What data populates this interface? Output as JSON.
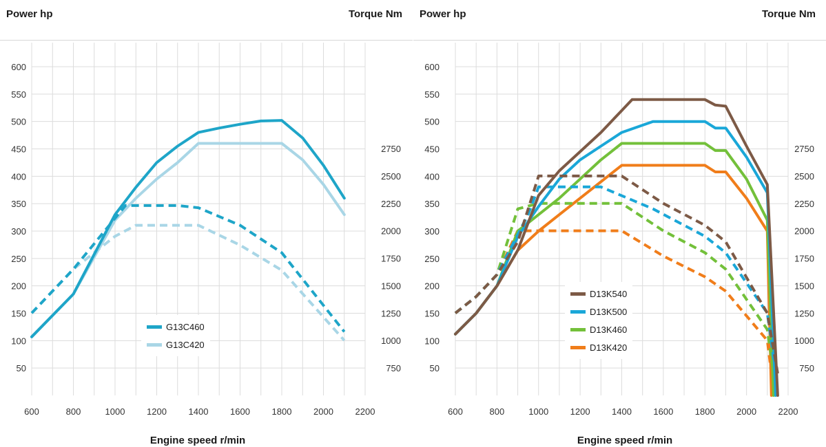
{
  "chart_data": [
    {
      "type": "line",
      "left_axis_title": "Power hp",
      "right_axis_title": "Torque Nm",
      "xlabel": "Engine speed r/min",
      "x_ticks": [
        600,
        800,
        1000,
        1200,
        1400,
        1600,
        1800,
        2000,
        2200
      ],
      "xlim": [
        600,
        2200
      ],
      "y_ticks": [
        50,
        100,
        150,
        200,
        250,
        300,
        350,
        400,
        450,
        500,
        550,
        600
      ],
      "ylim": [
        0,
        600
      ],
      "y2_ticks": [
        750,
        1000,
        1250,
        1500,
        1750,
        2000,
        2250,
        2500,
        2750
      ],
      "y2lim": [
        750,
        2750
      ],
      "grid": true,
      "legend_position": "bottom-center",
      "series": [
        {
          "name": "G13C460",
          "color": "#1ea5c8",
          "power": [
            [
              600,
              107
            ],
            [
              800,
              185
            ],
            [
              1000,
              330
            ],
            [
              1100,
              380
            ],
            [
              1200,
              425
            ],
            [
              1300,
              455
            ],
            [
              1400,
              480
            ],
            [
              1500,
              488
            ],
            [
              1600,
              495
            ],
            [
              1700,
              501
            ],
            [
              1800,
              502
            ],
            [
              1900,
              470
            ],
            [
              2000,
              420
            ],
            [
              2100,
              360
            ]
          ],
          "torque": [
            [
              600,
              1250
            ],
            [
              800,
              1650
            ],
            [
              1050,
              2230
            ],
            [
              1300,
              2230
            ],
            [
              1400,
              2210
            ],
            [
              1600,
              2050
            ],
            [
              1800,
              1800
            ],
            [
              2100,
              1080
            ]
          ]
        },
        {
          "name": "G13C420",
          "color": "#a9d6e6",
          "power": [
            [
              600,
              107
            ],
            [
              800,
              185
            ],
            [
              1000,
              320
            ],
            [
              1100,
              360
            ],
            [
              1200,
              395
            ],
            [
              1300,
              425
            ],
            [
              1400,
              460
            ],
            [
              1500,
              460
            ],
            [
              1600,
              460
            ],
            [
              1700,
              460
            ],
            [
              1800,
              460
            ],
            [
              1900,
              430
            ],
            [
              2000,
              385
            ],
            [
              2100,
              330
            ]
          ],
          "torque": [
            [
              600,
              1250
            ],
            [
              800,
              1650
            ],
            [
              1000,
              1950
            ],
            [
              1100,
              2050
            ],
            [
              1400,
              2050
            ],
            [
              1600,
              1870
            ],
            [
              1800,
              1640
            ],
            [
              2100,
              1000
            ]
          ]
        }
      ]
    },
    {
      "type": "line",
      "left_axis_title": "Power hp",
      "right_axis_title": "Torque Nm",
      "xlabel": "Engine speed r/min",
      "x_ticks": [
        600,
        800,
        1000,
        1200,
        1400,
        1600,
        1800,
        2000,
        2200
      ],
      "xlim": [
        600,
        2200
      ],
      "y_ticks": [
        50,
        100,
        150,
        200,
        250,
        300,
        350,
        400,
        450,
        500,
        550,
        600
      ],
      "ylim": [
        0,
        600
      ],
      "y2_ticks": [
        750,
        1000,
        1250,
        1500,
        1750,
        2000,
        2250,
        2500,
        2750
      ],
      "y2lim": [
        750,
        2750
      ],
      "grid": true,
      "legend_position": "bottom-center",
      "series": [
        {
          "name": "D13K540",
          "color": "#7d5a46",
          "power": [
            [
              600,
              112
            ],
            [
              700,
              150
            ],
            [
              800,
              200
            ],
            [
              900,
              265
            ],
            [
              1000,
              365
            ],
            [
              1100,
              410
            ],
            [
              1200,
              445
            ],
            [
              1300,
              480
            ],
            [
              1400,
              520
            ],
            [
              1450,
              540
            ],
            [
              1600,
              540
            ],
            [
              1800,
              540
            ],
            [
              1850,
              530
            ],
            [
              1900,
              528
            ],
            [
              2000,
              455
            ],
            [
              2100,
              385
            ],
            [
              2150,
              0
            ]
          ],
          "torque": [
            [
              600,
              1250
            ],
            [
              700,
              1400
            ],
            [
              800,
              1600
            ],
            [
              900,
              1900
            ],
            [
              1000,
              2500
            ],
            [
              1400,
              2500
            ],
            [
              1600,
              2250
            ],
            [
              1800,
              2050
            ],
            [
              1900,
              1900
            ],
            [
              2100,
              1250
            ],
            [
              2150,
              700
            ]
          ]
        },
        {
          "name": "D13K500",
          "color": "#1aa7d8",
          "power": [
            [
              600,
              112
            ],
            [
              700,
              150
            ],
            [
              800,
              200
            ],
            [
              900,
              290
            ],
            [
              1000,
              345
            ],
            [
              1100,
              395
            ],
            [
              1200,
              430
            ],
            [
              1300,
              455
            ],
            [
              1400,
              480
            ],
            [
              1550,
              500
            ],
            [
              1800,
              500
            ],
            [
              1850,
              488
            ],
            [
              1900,
              488
            ],
            [
              2000,
              435
            ],
            [
              2100,
              370
            ],
            [
              2140,
              0
            ]
          ],
          "torque": [
            [
              600,
              1250
            ],
            [
              700,
              1400
            ],
            [
              800,
              1600
            ],
            [
              950,
              2150
            ],
            [
              1000,
              2400
            ],
            [
              1300,
              2400
            ],
            [
              1550,
              2200
            ],
            [
              1800,
              1950
            ],
            [
              1900,
              1800
            ],
            [
              2100,
              1250
            ],
            [
              2140,
              700
            ]
          ]
        },
        {
          "name": "D13K460",
          "color": "#73c03a",
          "power": [
            [
              600,
              112
            ],
            [
              700,
              150
            ],
            [
              800,
              200
            ],
            [
              900,
              300
            ],
            [
              1000,
              330
            ],
            [
              1100,
              360
            ],
            [
              1200,
              395
            ],
            [
              1300,
              430
            ],
            [
              1400,
              460
            ],
            [
              1550,
              460
            ],
            [
              1800,
              460
            ],
            [
              1850,
              447
            ],
            [
              1900,
              447
            ],
            [
              2000,
              395
            ],
            [
              2100,
              320
            ],
            [
              2130,
              0
            ]
          ],
          "torque": [
            [
              600,
              1250
            ],
            [
              700,
              1400
            ],
            [
              800,
              1600
            ],
            [
              900,
              2200
            ],
            [
              1000,
              2250
            ],
            [
              1400,
              2250
            ],
            [
              1600,
              2000
            ],
            [
              1800,
              1800
            ],
            [
              1900,
              1650
            ],
            [
              2100,
              1100
            ],
            [
              2130,
              700
            ]
          ]
        },
        {
          "name": "D13K420",
          "color": "#f07d1a",
          "power": [
            [
              600,
              112
            ],
            [
              700,
              150
            ],
            [
              800,
              200
            ],
            [
              900,
              265
            ],
            [
              1000,
              300
            ],
            [
              1100,
              330
            ],
            [
              1200,
              360
            ],
            [
              1300,
              390
            ],
            [
              1400,
              420
            ],
            [
              1550,
              420
            ],
            [
              1800,
              420
            ],
            [
              1850,
              408
            ],
            [
              1900,
              408
            ],
            [
              2000,
              360
            ],
            [
              2100,
              300
            ],
            [
              2120,
              0
            ]
          ],
          "torque": [
            [
              600,
              1250
            ],
            [
              700,
              1400
            ],
            [
              800,
              1600
            ],
            [
              900,
              2000
            ],
            [
              1400,
              2000
            ],
            [
              1600,
              1770
            ],
            [
              1800,
              1580
            ],
            [
              1900,
              1450
            ],
            [
              2100,
              1000
            ],
            [
              2120,
              700
            ]
          ]
        }
      ]
    }
  ]
}
